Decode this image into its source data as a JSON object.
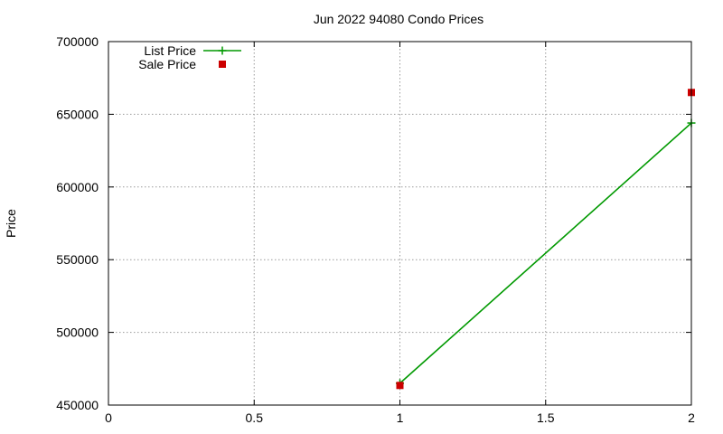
{
  "chart_data": {
    "type": "line",
    "title": "Jun 2022 94080 Condo Prices",
    "xlabel": "",
    "ylabel": "Price",
    "xlim": [
      0,
      2
    ],
    "ylim": [
      450000,
      700000
    ],
    "x_ticks": [
      0,
      0.5,
      1,
      1.5,
      2
    ],
    "x_tick_labels": [
      "0",
      "0.5",
      "1",
      "1.5",
      "2"
    ],
    "y_ticks": [
      450000,
      500000,
      550000,
      600000,
      650000,
      700000
    ],
    "y_tick_labels": [
      "450000",
      "500000",
      "550000",
      "600000",
      "650000",
      "700000"
    ],
    "grid": true,
    "legend_position": "top-left",
    "series": [
      {
        "name": "List Price",
        "style": "line-with-plus-markers",
        "color": "#009900",
        "x": [
          1,
          2
        ],
        "y": [
          465000,
          644000
        ]
      },
      {
        "name": "Sale Price",
        "style": "square-markers",
        "color": "#cc0000",
        "x": [
          1,
          2
        ],
        "y": [
          463500,
          665000
        ]
      }
    ]
  }
}
